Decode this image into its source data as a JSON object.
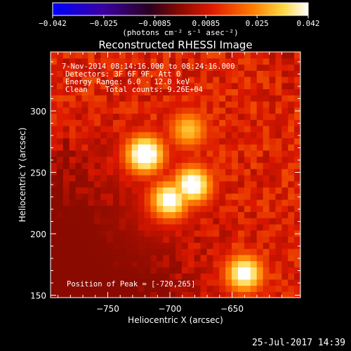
{
  "chart_data": {
    "type": "heatmap",
    "title": "Reconstructed RHESSI Image",
    "xlabel": "Heliocentric X (arcsec)",
    "ylabel": "Heliocentric Y (arcsec)",
    "xlim": [
      -796,
      -595
    ],
    "ylim": [
      148,
      348
    ],
    "x_ticks": [
      -750,
      -700,
      -650
    ],
    "y_ticks": [
      150,
      200,
      250,
      300
    ],
    "colorbar": {
      "label": "(photons cm⁻² s⁻¹ asec⁻²)",
      "range": [
        -0.042,
        0.042
      ],
      "ticks": [
        "-0.042",
        "-0.025",
        "-0.0085",
        "0.0085",
        "0.025",
        "0.042"
      ],
      "colormap": "blue-purple-red-orange-yellow-white"
    },
    "annotations": [
      "7-Nov-2014 08:14:16.000 to 08:24:16.000",
      "Detectors: 3F 6F 9F, Att 0",
      "Energy Range: 6.0 - 12.0 keV",
      "Clean    Total counts: 9.26E+04",
      "Position of Peak = [-720,265]"
    ],
    "sources": [
      {
        "x": -720,
        "y": 265,
        "peak": 0.042
      },
      {
        "x": -682,
        "y": 240,
        "peak": 0.039
      },
      {
        "x": -700,
        "y": 228,
        "peak": 0.037
      },
      {
        "x": -640,
        "y": 168,
        "peak": 0.036
      },
      {
        "x": -685,
        "y": 285,
        "peak": 0.024
      }
    ],
    "grid": false
  },
  "footer": {
    "date": "25-Jul-2017 14:39"
  }
}
